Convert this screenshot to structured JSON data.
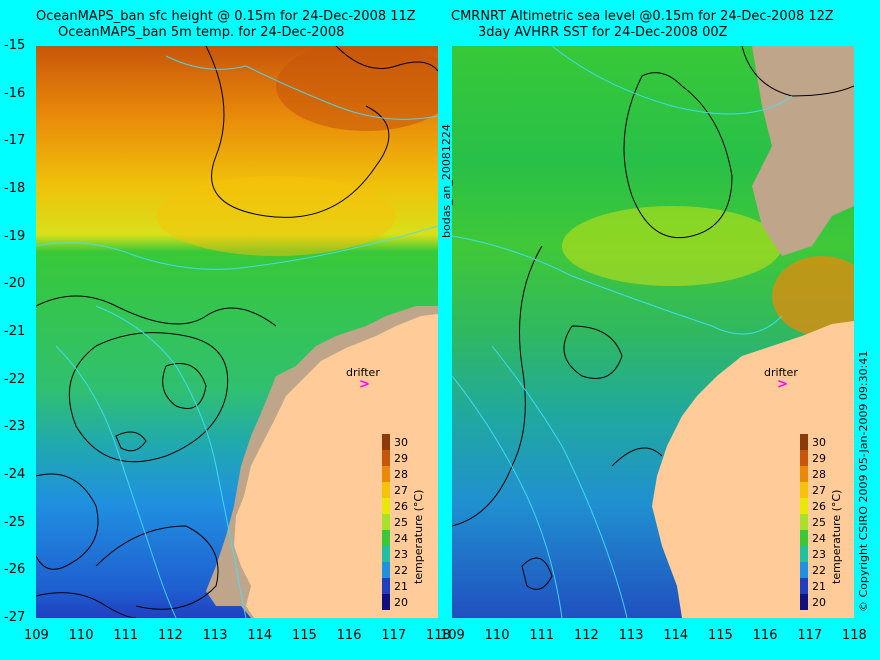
{
  "left_panel": {
    "title_line1": "OceanMAPS_ban sfc height @ 0.15m for 24-Dec-2008 11Z",
    "title_line2": "OceanMAPS_ban 5m temp. for 24-Dec-2008",
    "drifter_label": "drifter",
    "drifter_marker": ">",
    "side_label": "bodas_an_20081224"
  },
  "right_panel": {
    "title_line1": "CMRNRT Altimetric sea level  @0.15m  for 24-Dec-2008 12Z",
    "title_line2": "3day AVHRR SST for 24-Dec-2008 00Z",
    "drifter_label": "drifter",
    "drifter_marker": ">",
    "side_label": "© Copyright CSIRO 2009   05-Jan-2009 09:30:41"
  },
  "axes": {
    "y_ticks": [
      "-15",
      "-16",
      "-17",
      "-18",
      "-19",
      "-20",
      "-21",
      "-22",
      "-23",
      "-24",
      "-25",
      "-26",
      "-27"
    ],
    "x_ticks": [
      "109",
      "110",
      "111",
      "112",
      "113",
      "114",
      "115",
      "116",
      "117",
      "118"
    ]
  },
  "colorbar": {
    "label": "temperature (°C)",
    "ticks": [
      "30",
      "29",
      "28",
      "27",
      "26",
      "25",
      "24",
      "23",
      "22",
      "21",
      "20"
    ],
    "colors": [
      "#8b3a0a",
      "#c8560a",
      "#e8890a",
      "#f7c20a",
      "#e8e80a",
      "#a8e02a",
      "#38c838",
      "#20c0a0",
      "#2090e0",
      "#2040c0",
      "#101080"
    ]
  },
  "colors": {
    "land": "#ffcc99",
    "mask": "#bfa58a",
    "background": "#00ffff",
    "drifter": "#ff00ff",
    "contour": "#000000",
    "isobath": "#40e0ff"
  }
}
